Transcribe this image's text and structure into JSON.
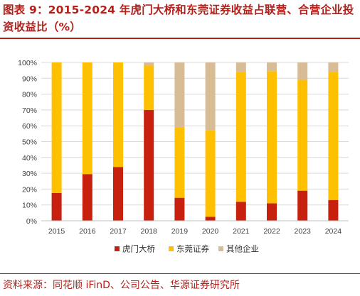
{
  "header": {
    "title": "图表 9：2015-2024 年虎门大桥和东莞证券收益占联营、合营企业投资收益比（%）"
  },
  "footer": {
    "source": "资料来源：同花顺 iFinD、公司公告、华源证券研究所"
  },
  "colors": {
    "humen": "#c8200f",
    "dongguan": "#ffc000",
    "other": "#d8bc96",
    "grid": "#d9d9d9",
    "axis": "#bfbfbf"
  },
  "chart_data": {
    "type": "bar",
    "stacked": true,
    "title": "",
    "xlabel": "",
    "ylabel": "",
    "categories": [
      "2015",
      "2016",
      "2017",
      "2018",
      "2019",
      "2020",
      "2021",
      "2022",
      "2023",
      "2024"
    ],
    "series": [
      {
        "name": "虎门大桥",
        "color_key": "humen",
        "values": [
          17.5,
          29.5,
          34,
          70,
          14.5,
          2.5,
          12,
          11,
          19,
          13
        ]
      },
      {
        "name": "东莞证券",
        "color_key": "dongguan",
        "values": [
          82.5,
          70.5,
          66,
          28,
          44.5,
          54.5,
          82,
          83.5,
          70,
          81
        ]
      },
      {
        "name": "其他企业",
        "color_key": "other",
        "values": [
          0,
          0,
          0,
          2,
          41,
          43,
          6,
          5.5,
          11,
          6
        ]
      }
    ],
    "ylim": [
      0,
      100
    ],
    "yticks": [
      "0%",
      "10%",
      "20%",
      "30%",
      "40%",
      "50%",
      "60%",
      "70%",
      "80%",
      "90%",
      "100%"
    ],
    "ytick_values": [
      0,
      10,
      20,
      30,
      40,
      50,
      60,
      70,
      80,
      90,
      100
    ],
    "grid": true,
    "legend_position": "bottom"
  }
}
